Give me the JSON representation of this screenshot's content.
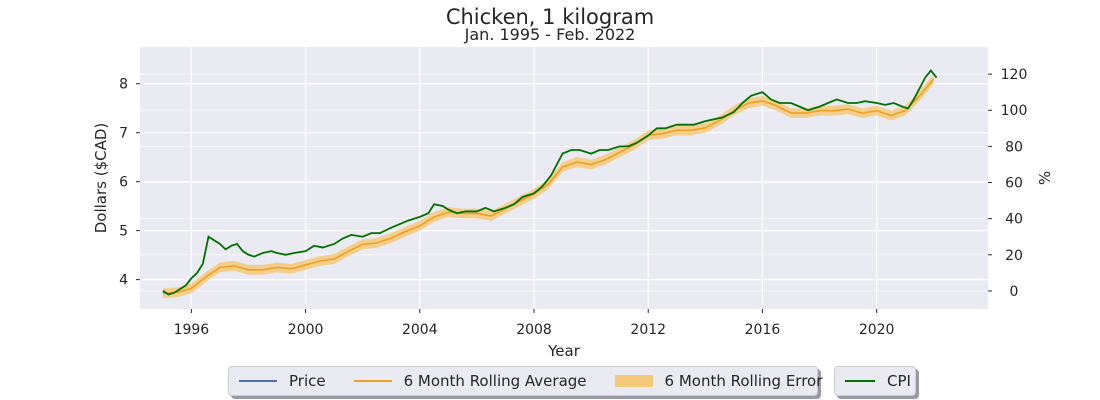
{
  "chart_data": {
    "type": "line",
    "title": "Chicken, 1 kilogram",
    "subtitle": "Jan. 1995 - Feb. 2022",
    "xlabel": "Year",
    "ylabel": "Dollars ($CAD)",
    "ylabel_right": "%",
    "xlim": [
      1994.2,
      2023.9
    ],
    "ylim": [
      3.4,
      8.75
    ],
    "ylim_right": [
      -10,
      135
    ],
    "x_ticks": [
      1996,
      2000,
      2004,
      2008,
      2012,
      2016,
      2020
    ],
    "y_ticks": [
      4,
      5,
      6,
      7,
      8
    ],
    "y_ticks_right": [
      0,
      20,
      40,
      60,
      80,
      100,
      120
    ],
    "grid": true,
    "legend_placement": "bottom-center",
    "colors": {
      "price": "#4c72b0",
      "rolling_average": "#f0a020",
      "rolling_error": "#f5c97a",
      "cpi": "#007000",
      "plot_background": "#eaeaf2",
      "grid": "#ffffff"
    },
    "legend": {
      "price": "Price",
      "rolling_average": "6 Month Rolling Average",
      "rolling_error": "6 Month Rolling Error",
      "cpi": "CPI"
    },
    "series": [
      {
        "name": "CPI",
        "x": [
          1995.0,
          1995.2,
          1995.4,
          1995.6,
          1995.8,
          1996.0,
          1996.2,
          1996.4,
          1996.6,
          1996.8,
          1997.0,
          1997.2,
          1997.4,
          1997.6,
          1997.8,
          1998.0,
          1998.2,
          1998.5,
          1998.8,
          1999.0,
          1999.3,
          1999.6,
          2000.0,
          2000.3,
          2000.6,
          2001.0,
          2001.3,
          2001.6,
          2002.0,
          2002.3,
          2002.6,
          2003.0,
          2003.3,
          2003.6,
          2004.0,
          2004.3,
          2004.5,
          2004.8,
          2005.0,
          2005.3,
          2005.6,
          2006.0,
          2006.3,
          2006.6,
          2007.0,
          2007.3,
          2007.6,
          2008.0,
          2008.3,
          2008.6,
          2009.0,
          2009.3,
          2009.6,
          2010.0,
          2010.3,
          2010.6,
          2011.0,
          2011.3,
          2011.6,
          2012.0,
          2012.3,
          2012.6,
          2013.0,
          2013.3,
          2013.6,
          2014.0,
          2014.3,
          2014.6,
          2015.0,
          2015.3,
          2015.6,
          2016.0,
          2016.3,
          2016.6,
          2017.0,
          2017.3,
          2017.6,
          2018.0,
          2018.3,
          2018.6,
          2019.0,
          2019.3,
          2019.6,
          2020.0,
          2020.3,
          2020.6,
          2020.9,
          2021.1,
          2021.3,
          2021.5,
          2021.7,
          2021.9,
          2022.1
        ],
        "values": [
          0,
          -2,
          -1,
          1,
          3,
          7,
          10,
          15,
          30,
          28,
          26,
          23,
          25,
          26,
          22,
          20,
          19,
          21,
          22,
          21,
          20,
          21,
          22,
          25,
          24,
          26,
          29,
          31,
          30,
          32,
          32,
          35,
          37,
          39,
          41,
          43,
          48,
          47,
          45,
          43,
          44,
          44,
          46,
          44,
          46,
          48,
          52,
          54,
          58,
          64,
          76,
          78,
          78,
          76,
          78,
          78,
          80,
          80,
          82,
          86,
          90,
          90,
          92,
          92,
          92,
          94,
          95,
          96,
          99,
          104,
          108,
          110,
          106,
          104,
          104,
          102,
          100,
          102,
          104,
          106,
          104,
          104,
          105,
          104,
          103,
          104,
          102,
          101,
          106,
          112,
          118,
          122,
          118
        ]
      },
      {
        "name": "6 Month Rolling Average",
        "x": [
          1995.0,
          1995.5,
          1996.0,
          1996.5,
          1997.0,
          1997.5,
          1998.0,
          1998.5,
          1999.0,
          1999.5,
          2000.0,
          2000.5,
          2001.0,
          2001.5,
          2002.0,
          2002.5,
          2003.0,
          2003.5,
          2004.0,
          2004.5,
          2005.0,
          2005.5,
          2006.0,
          2006.5,
          2007.0,
          2007.5,
          2008.0,
          2008.5,
          2009.0,
          2009.5,
          2010.0,
          2010.5,
          2011.0,
          2011.5,
          2012.0,
          2012.5,
          2013.0,
          2013.5,
          2014.0,
          2014.5,
          2015.0,
          2015.5,
          2016.0,
          2016.5,
          2017.0,
          2017.5,
          2018.0,
          2018.5,
          2019.0,
          2019.5,
          2020.0,
          2020.5,
          2021.0,
          2021.5,
          2022.0
        ],
        "values": [
          3.72,
          3.74,
          3.82,
          4.05,
          4.25,
          4.28,
          4.2,
          4.2,
          4.25,
          4.22,
          4.3,
          4.38,
          4.42,
          4.58,
          4.72,
          4.75,
          4.85,
          4.98,
          5.1,
          5.28,
          5.38,
          5.35,
          5.35,
          5.3,
          5.45,
          5.6,
          5.75,
          5.95,
          6.3,
          6.4,
          6.35,
          6.45,
          6.6,
          6.75,
          6.95,
          6.98,
          7.05,
          7.05,
          7.1,
          7.25,
          7.45,
          7.6,
          7.65,
          7.55,
          7.4,
          7.4,
          7.45,
          7.45,
          7.48,
          7.4,
          7.45,
          7.35,
          7.45,
          7.75,
          8.1
        ]
      }
    ]
  }
}
